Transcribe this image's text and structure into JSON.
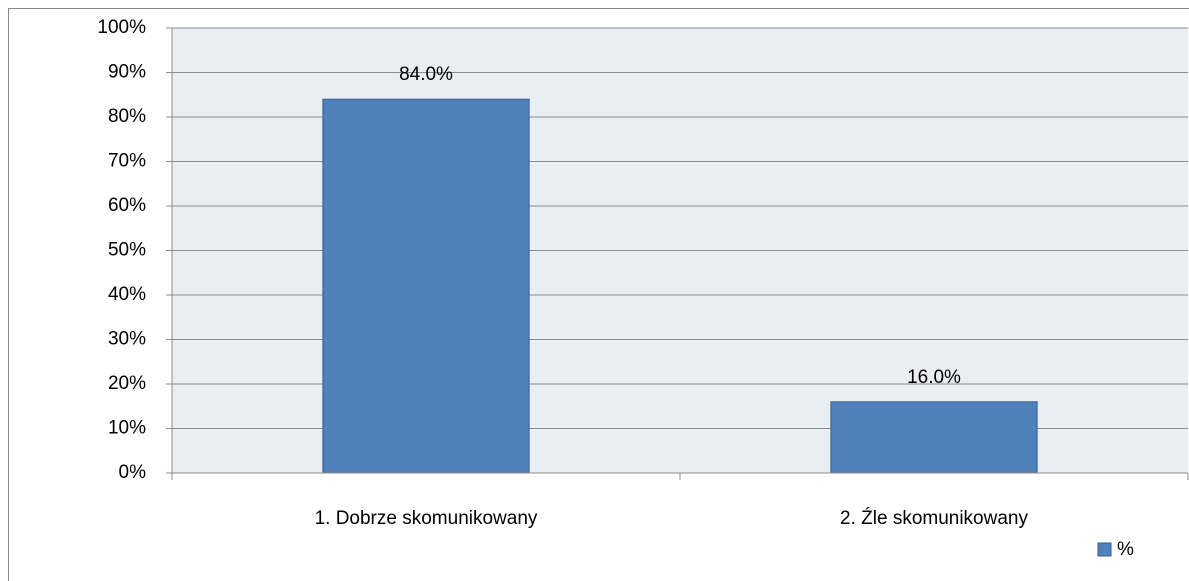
{
  "chart_data": {
    "type": "bar",
    "categories": [
      "1. Dobrze skomunikowany",
      "2. Źle skomunikowany"
    ],
    "series": [
      {
        "name": "%",
        "color": "#4f81bd",
        "values": [
          84,
          16
        ],
        "value_labels": [
          "84.0%",
          "16.0%"
        ]
      }
    ],
    "ylim": [
      0,
      100
    ],
    "yticks": [
      {
        "value": 0,
        "label": "0%"
      },
      {
        "value": 10,
        "label": "10%"
      },
      {
        "value": 20,
        "label": "20%"
      },
      {
        "value": 30,
        "label": "30%"
      },
      {
        "value": 40,
        "label": "40%"
      },
      {
        "value": 50,
        "label": "50%"
      },
      {
        "value": 60,
        "label": "60%"
      },
      {
        "value": 70,
        "label": "70%"
      },
      {
        "value": 80,
        "label": "80%"
      },
      {
        "value": 90,
        "label": "90%"
      },
      {
        "value": 100,
        "label": "100%"
      }
    ],
    "grid": true,
    "legend": "bottom-right"
  }
}
